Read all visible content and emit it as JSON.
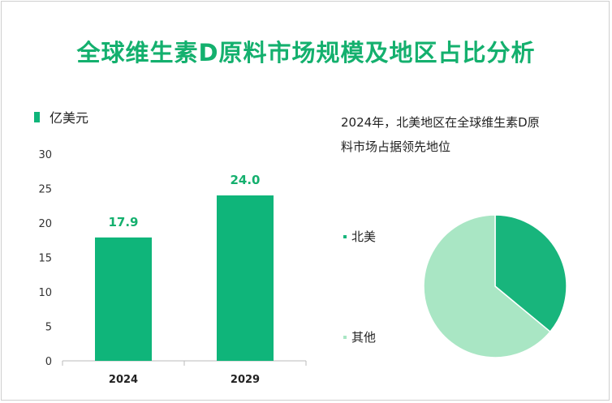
{
  "title": "全球维生素D原料市场规模及地区占比分析",
  "chart_data": [
    {
      "type": "bar",
      "legend_label": "亿美元",
      "categories": [
        "2024",
        "2029"
      ],
      "values": [
        17.9,
        24.0
      ],
      "value_labels": [
        "17.9",
        "24.0"
      ],
      "ylim": [
        0,
        30
      ],
      "yticks": [
        "0",
        "5",
        "10",
        "15",
        "20",
        "25",
        "30"
      ],
      "color": "#0fb57a",
      "label_color": "#14b06e"
    },
    {
      "type": "pie",
      "title": "2024年，北美地区在全球维生素D原料市场占据领先地位",
      "title_lines": [
        "2024年，北美地区在全球维生素D原",
        "料市场占据领先地位"
      ],
      "slices": [
        {
          "label": "北美",
          "value": 36,
          "color": "#18b57c"
        },
        {
          "label": "其他",
          "value": 64,
          "color": "#a9e6c4"
        }
      ]
    }
  ]
}
